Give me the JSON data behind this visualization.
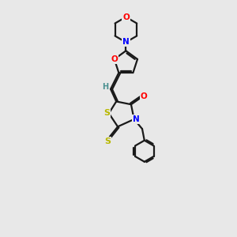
{
  "bg_color": "#e8e8e8",
  "bond_color": "#1a1a1a",
  "atom_colors": {
    "O": "#ff0000",
    "N": "#0000ff",
    "S": "#b8b800",
    "C": "#1a1a1a",
    "H": "#4a9090"
  },
  "figsize": [
    3.0,
    3.0
  ],
  "dpi": 100,
  "xlim": [
    0,
    10
  ],
  "ylim": [
    0,
    16
  ]
}
